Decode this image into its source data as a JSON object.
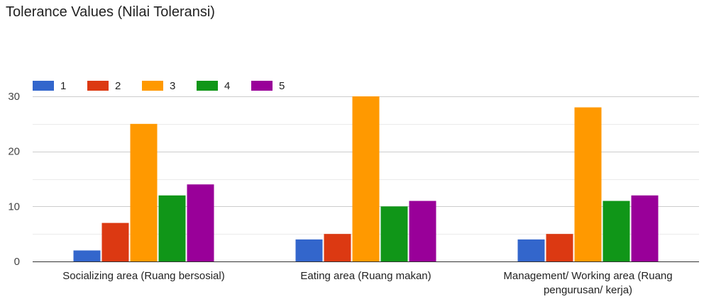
{
  "chart_data": {
    "type": "bar",
    "title": "Tolerance Values (Nilai Toleransi)",
    "categories": [
      [
        "Socializing area (Ruang bersosial)"
      ],
      [
        "Eating area (Ruang makan)"
      ],
      [
        "Management/ Working area (Ruang",
        "pengurusan/ kerja)"
      ]
    ],
    "series": [
      {
        "name": "1",
        "color": "#3366cc",
        "values": [
          2,
          4,
          4
        ]
      },
      {
        "name": "2",
        "color": "#dc3912",
        "values": [
          7,
          5,
          5
        ]
      },
      {
        "name": "3",
        "color": "#ff9900",
        "values": [
          25,
          30,
          28
        ]
      },
      {
        "name": "4",
        "color": "#109618",
        "values": [
          12,
          10,
          11
        ]
      },
      {
        "name": "5",
        "color": "#990099",
        "values": [
          14,
          11,
          12
        ]
      }
    ],
    "yticks": [
      0,
      10,
      20,
      30
    ],
    "ylim": [
      0,
      30
    ],
    "grid": true,
    "legend_position": "top-left"
  }
}
